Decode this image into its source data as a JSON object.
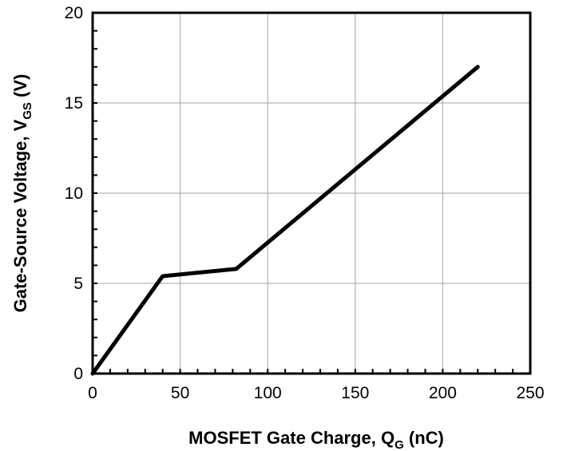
{
  "chart_data": {
    "type": "line",
    "xlabel": "MOSFET Gate Charge, Q",
    "xlabel_sub": "G",
    "xlabel_unit": " (nC)",
    "ylabel": "Gate-Source Voltage, V",
    "ylabel_sub": "GS",
    "ylabel_unit": " (V)",
    "xlim": [
      0,
      250
    ],
    "ylim": [
      0,
      20
    ],
    "x_ticks": [
      0,
      50,
      100,
      150,
      200,
      250
    ],
    "y_ticks": [
      0,
      5,
      10,
      15,
      20
    ],
    "x_tick_labels": [
      "0",
      "50",
      "100",
      "150",
      "200",
      "250"
    ],
    "y_tick_labels": [
      "0",
      "5",
      "10",
      "15",
      "20"
    ],
    "grid": true,
    "series": [
      {
        "x": [
          0,
          40,
          82,
          220
        ],
        "y": [
          0,
          5.4,
          5.8,
          17.0
        ],
        "color": "#000000"
      }
    ]
  }
}
